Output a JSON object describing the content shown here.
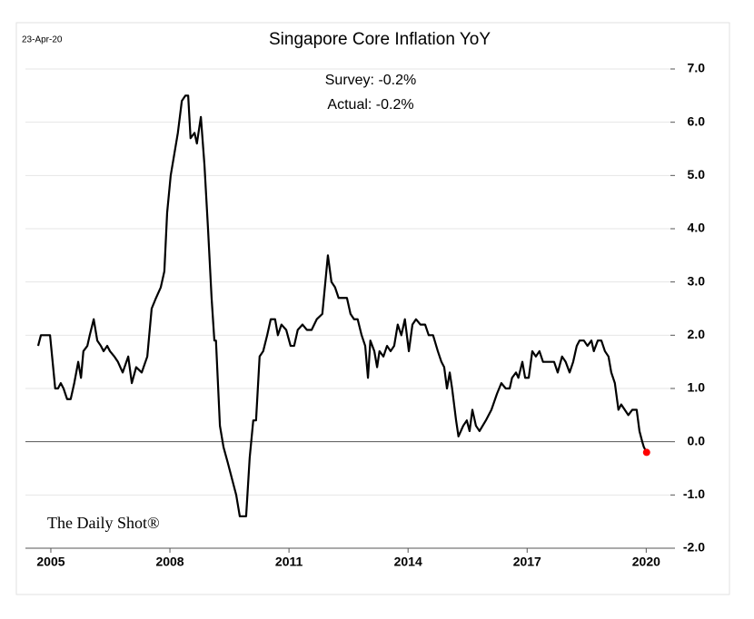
{
  "chart_data": {
    "type": "line",
    "date": "23-Apr-20",
    "title": "Singapore Core Inflation YoY",
    "annotations": [
      "Survey: -0.2%",
      "Actual:  -0.2%"
    ],
    "watermark": "The Daily Shot®",
    "xlim": [
      2004.36,
      2020.61
    ],
    "xticks": [
      2005,
      2008,
      2011,
      2014,
      2017,
      2020
    ],
    "ylim": [
      -2,
      7
    ],
    "yticks": [
      {
        "value": -2,
        "label": "-2.0"
      },
      {
        "value": -1,
        "label": "-1.0"
      },
      {
        "value": 0,
        "label": "0.0"
      },
      {
        "value": 1,
        "label": "1.0"
      },
      {
        "value": 2,
        "label": "2.0"
      },
      {
        "value": 3,
        "label": "3.0"
      },
      {
        "value": 4,
        "label": "4.0"
      },
      {
        "value": 5,
        "label": "5.0"
      },
      {
        "value": 6,
        "label": "6.0"
      },
      {
        "value": 7,
        "label": "7.0"
      }
    ],
    "grid": true,
    "color": "#000000",
    "marker_color": "#ff0000",
    "x": [
      2004.68,
      2004.75,
      2004.91,
      2004.98,
      2005.11,
      2005.18,
      2005.25,
      2005.32,
      2005.41,
      2005.5,
      2005.59,
      2005.69,
      2005.76,
      2005.82,
      2005.92,
      2005.98,
      2006.08,
      2006.17,
      2006.26,
      2006.33,
      2006.42,
      2006.49,
      2006.6,
      2006.69,
      2006.81,
      2006.95,
      2007.04,
      2007.15,
      2007.29,
      2007.43,
      2007.54,
      2007.65,
      2007.77,
      2007.86,
      2007.93,
      2008.02,
      2008.11,
      2008.2,
      2008.3,
      2008.39,
      2008.46,
      2008.52,
      2008.62,
      2008.68,
      2008.78,
      2008.87,
      2008.96,
      2009.05,
      2009.12,
      2009.16,
      2009.26,
      2009.35,
      2009.46,
      2009.6,
      2009.67,
      2009.76,
      2009.92,
      2010.01,
      2010.1,
      2010.17,
      2010.26,
      2010.35,
      2010.45,
      2010.54,
      2010.65,
      2010.72,
      2010.81,
      2010.93,
      2011.04,
      2011.13,
      2011.22,
      2011.34,
      2011.45,
      2011.57,
      2011.7,
      2011.84,
      2011.98,
      2012.07,
      2012.16,
      2012.25,
      2012.39,
      2012.46,
      2012.55,
      2012.64,
      2012.73,
      2012.83,
      2012.92,
      2012.99,
      2013.05,
      2013.15,
      2013.22,
      2013.28,
      2013.38,
      2013.47,
      2013.56,
      2013.65,
      2013.74,
      2013.83,
      2013.92,
      2014.02,
      2014.11,
      2014.2,
      2014.31,
      2014.43,
      2014.52,
      2014.63,
      2014.75,
      2014.84,
      2014.91,
      2014.98,
      2015.05,
      2015.11,
      2015.21,
      2015.27,
      2015.39,
      2015.48,
      2015.55,
      2015.62,
      2015.71,
      2015.8,
      2015.96,
      2016.1,
      2016.24,
      2016.35,
      2016.46,
      2016.56,
      2016.62,
      2016.72,
      2016.78,
      2016.88,
      2016.95,
      2017.04,
      2017.13,
      2017.22,
      2017.31,
      2017.4,
      2017.52,
      2017.68,
      2017.77,
      2017.88,
      2017.97,
      2018.07,
      2018.16,
      2018.25,
      2018.32,
      2018.43,
      2018.52,
      2018.62,
      2018.68,
      2018.78,
      2018.87,
      2018.96,
      2019.05,
      2019.12,
      2019.21,
      2019.3,
      2019.37,
      2019.46,
      2019.55,
      2019.65,
      2019.76,
      2019.83,
      2019.9,
      2019.94,
      2020.01
    ],
    "values": [
      1.8,
      2.0,
      2.0,
      2.0,
      1.0,
      1.0,
      1.1,
      1.0,
      0.8,
      0.8,
      1.1,
      1.5,
      1.2,
      1.7,
      1.8,
      2.0,
      2.3,
      1.9,
      1.8,
      1.7,
      1.8,
      1.7,
      1.6,
      1.5,
      1.3,
      1.6,
      1.1,
      1.4,
      1.3,
      1.6,
      2.5,
      2.7,
      2.9,
      3.2,
      4.3,
      5.0,
      5.4,
      5.8,
      6.4,
      6.5,
      6.5,
      5.7,
      5.8,
      5.6,
      6.1,
      5.2,
      4.0,
      2.7,
      1.9,
      1.9,
      0.3,
      -0.1,
      -0.4,
      -0.8,
      -1.0,
      -1.4,
      -1.4,
      -0.3,
      0.4,
      0.4,
      1.6,
      1.7,
      2.0,
      2.3,
      2.3,
      2.0,
      2.2,
      2.1,
      1.8,
      1.8,
      2.1,
      2.2,
      2.1,
      2.1,
      2.3,
      2.4,
      3.5,
      3.0,
      2.9,
      2.7,
      2.7,
      2.7,
      2.4,
      2.3,
      2.3,
      2.0,
      1.8,
      1.2,
      1.9,
      1.7,
      1.4,
      1.7,
      1.6,
      1.8,
      1.7,
      1.8,
      2.2,
      2.0,
      2.3,
      1.7,
      2.2,
      2.3,
      2.2,
      2.2,
      2.0,
      2.0,
      1.7,
      1.5,
      1.4,
      1.0,
      1.3,
      1.0,
      0.4,
      0.1,
      0.3,
      0.4,
      0.2,
      0.6,
      0.3,
      0.2,
      0.4,
      0.6,
      0.9,
      1.1,
      1.0,
      1.0,
      1.2,
      1.3,
      1.2,
      1.5,
      1.2,
      1.2,
      1.7,
      1.6,
      1.7,
      1.5,
      1.5,
      1.5,
      1.3,
      1.6,
      1.5,
      1.3,
      1.5,
      1.8,
      1.9,
      1.9,
      1.8,
      1.9,
      1.7,
      1.9,
      1.9,
      1.7,
      1.6,
      1.3,
      1.1,
      0.6,
      0.7,
      0.6,
      0.5,
      0.6,
      0.6,
      0.2,
      0.0,
      -0.1,
      -0.2
    ]
  }
}
